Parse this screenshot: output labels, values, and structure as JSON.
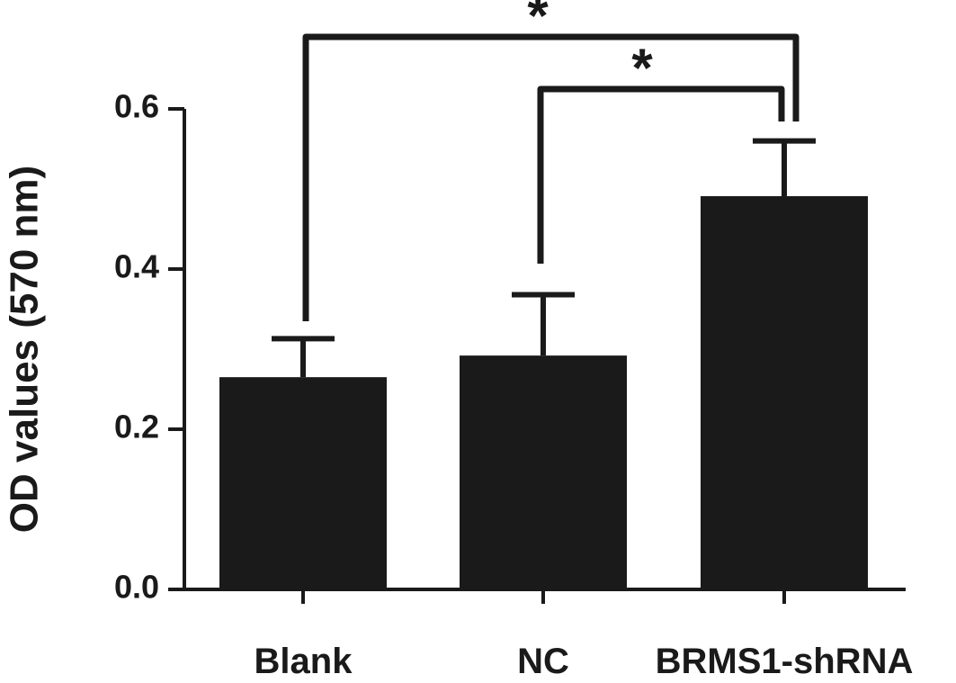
{
  "chart_data": {
    "type": "bar",
    "categories": [
      "Blank",
      "NC",
      "BRMS1-shRNA"
    ],
    "values": [
      0.265,
      0.292,
      0.491
    ],
    "error_upper": [
      0.313,
      0.368,
      0.56
    ],
    "ylabel": "OD values (570 nm)",
    "xlabel": "",
    "title": "",
    "ylim": [
      0,
      0.6
    ],
    "yticks": [
      0.0,
      0.2,
      0.4,
      0.6
    ],
    "ytick_labels": [
      "0.0",
      "0.2",
      "0.4",
      "0.6"
    ],
    "grid": false,
    "significance": [
      {
        "from": "Blank",
        "to": "BRMS1-shRNA",
        "label": "*"
      },
      {
        "from": "NC",
        "to": "BRMS1-shRNA",
        "label": "*"
      }
    ],
    "colors": {
      "bar": "#1a1a1a",
      "axis": "#1a1a1a"
    }
  }
}
